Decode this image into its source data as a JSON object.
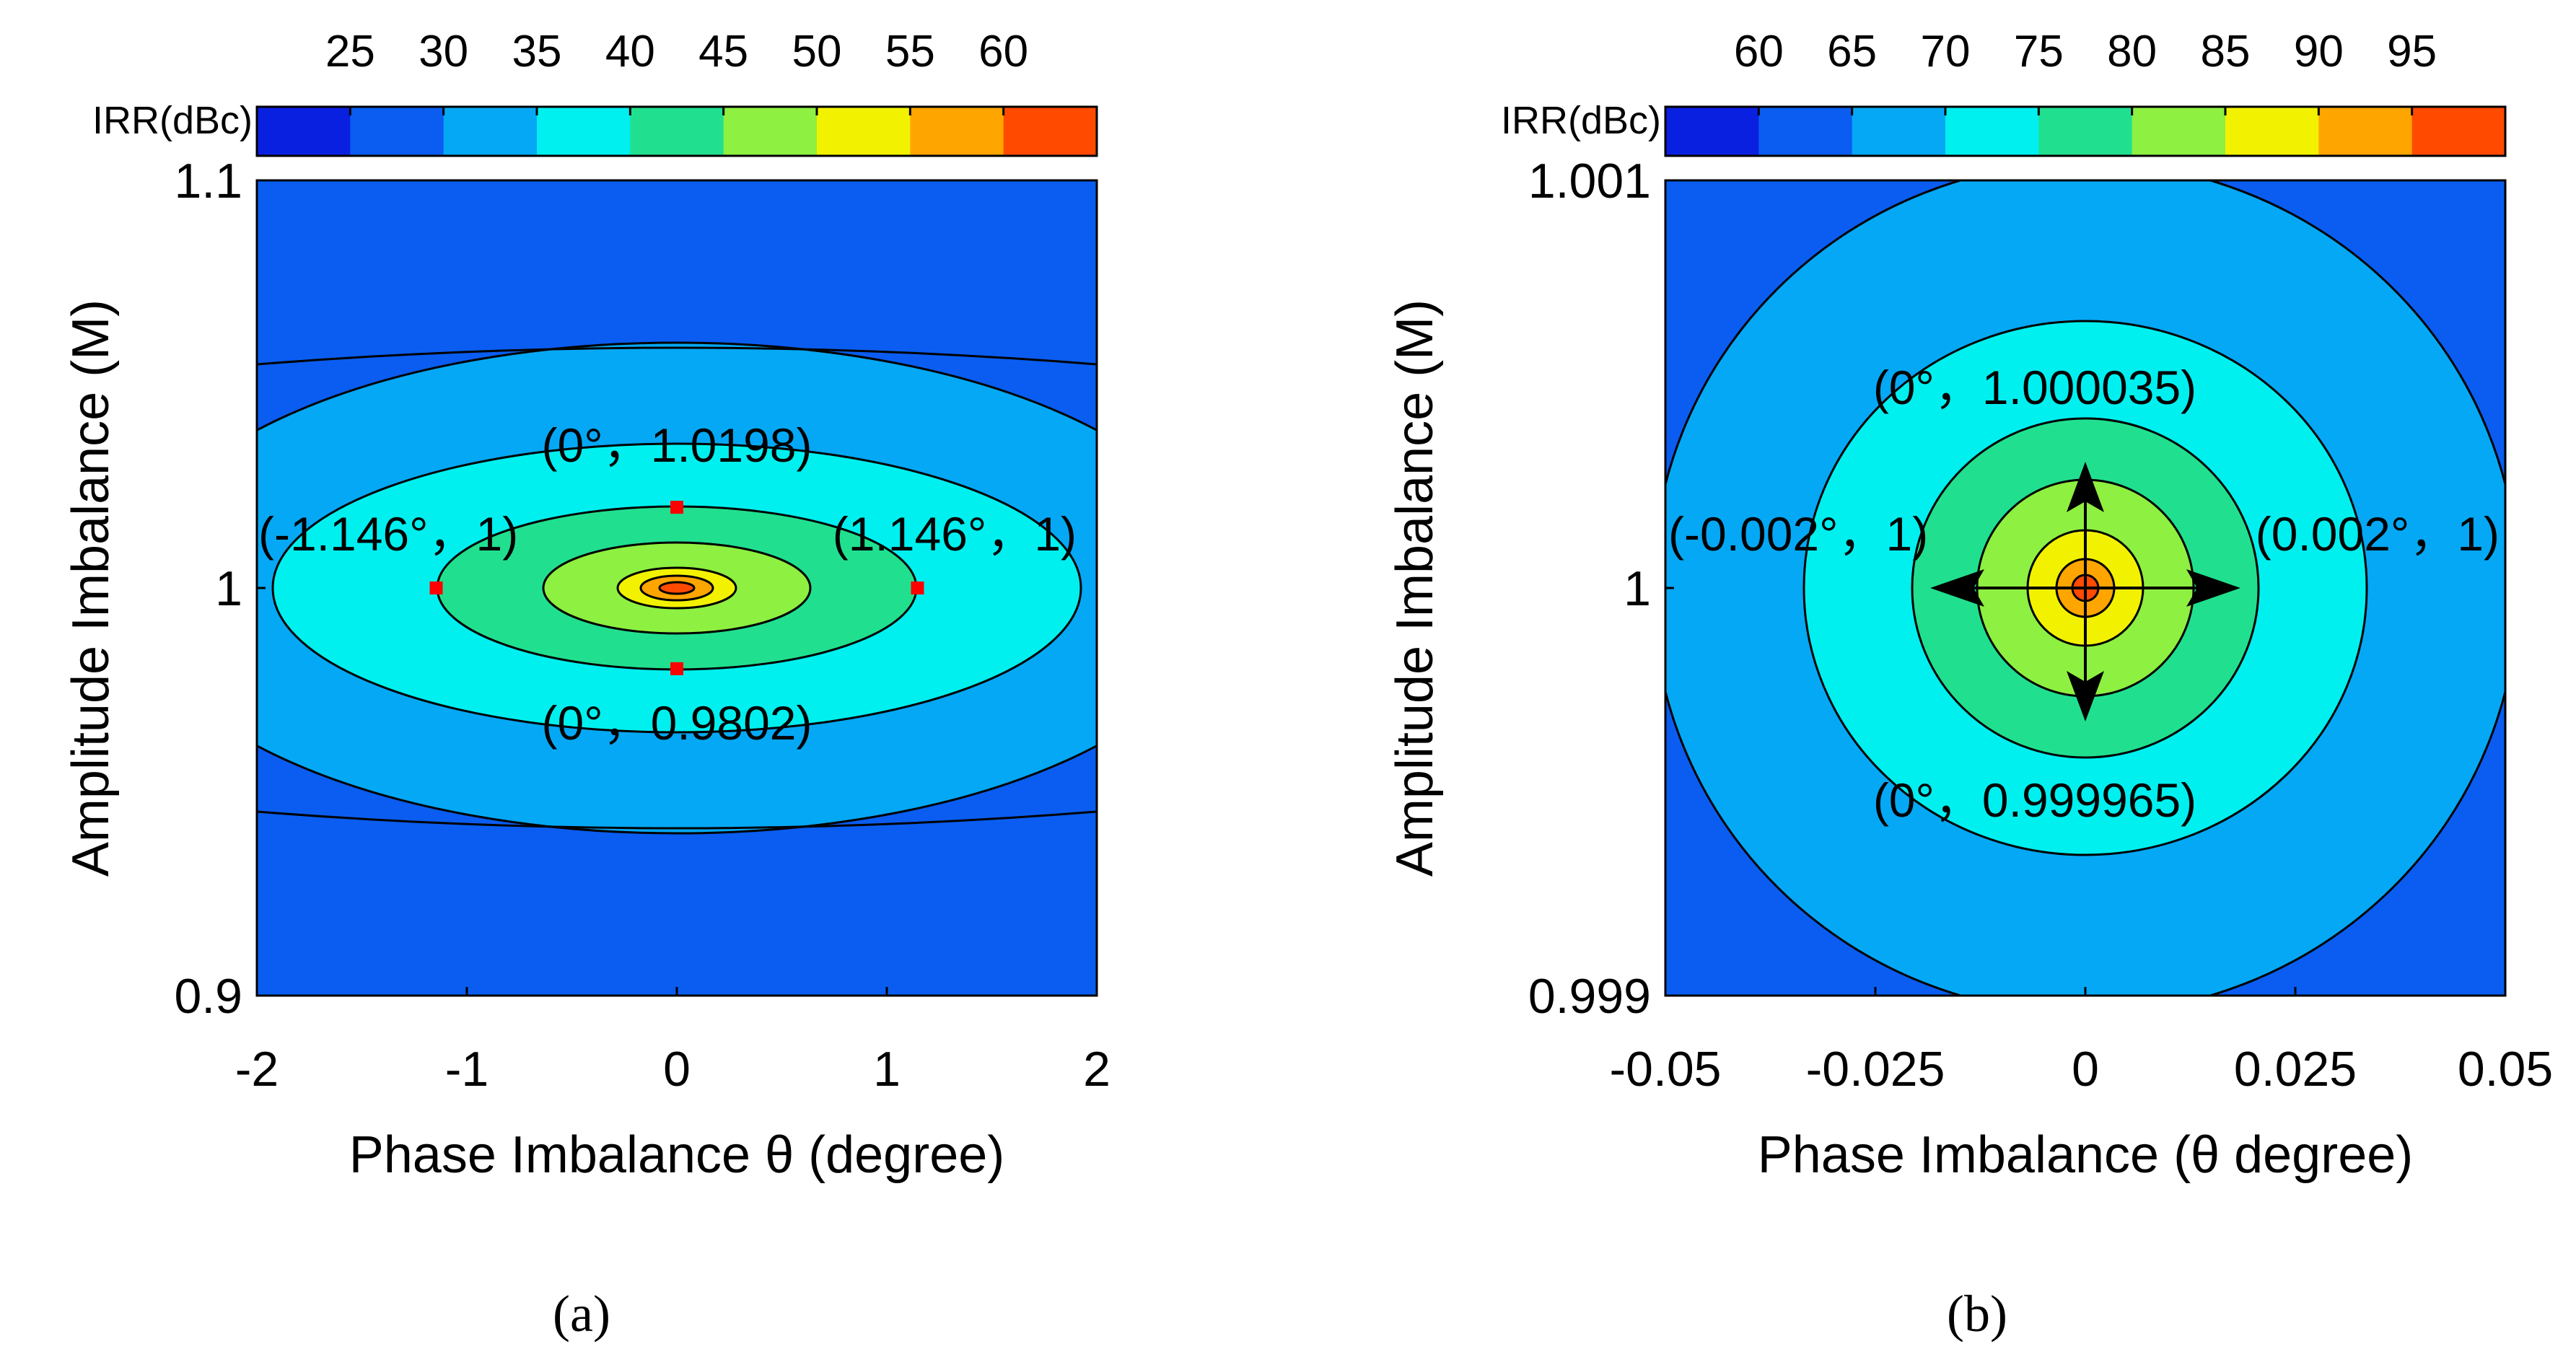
{
  "chart_data": [
    {
      "panel": "a",
      "type": "contourf",
      "xlabel": "Phase Imbalance θ (degree)",
      "ylabel": "Amplitude Imbalance (M)",
      "colorbar_title": "IRR(dBc)",
      "xlim": [
        -2,
        2
      ],
      "ylim": [
        0.9,
        1.1
      ],
      "xticks": [
        "-2",
        "-1",
        "0",
        "1",
        "2"
      ],
      "yticks": [
        "0.9",
        "1",
        "1.1"
      ],
      "colorbar_ticks": [
        "25",
        "30",
        "35",
        "40",
        "45",
        "50",
        "55",
        "60"
      ],
      "contour_levels_dBc": [
        30,
        35,
        40,
        45,
        50,
        55,
        60
      ],
      "annotations": [
        {
          "text": "(0°，1.0198)",
          "x": 0,
          "y": 1.0198
        },
        {
          "text": "(0°，0.9802)",
          "x": 0,
          "y": 0.9802
        },
        {
          "text": "(-1.146°，1)",
          "x": -1.146,
          "y": 1
        },
        {
          "text": "(1.146°，1)",
          "x": 1.146,
          "y": 1
        }
      ],
      "highlighted_points": [
        {
          "x": 0,
          "y": 1.0198
        },
        {
          "x": 0,
          "y": 0.9802
        },
        {
          "x": -1.146,
          "y": 1
        },
        {
          "x": 1.146,
          "y": 1
        }
      ]
    },
    {
      "panel": "b",
      "type": "contourf",
      "xlabel": "Phase Imbalance (θ degree)",
      "ylabel": "Amplitude Imbalance (M)",
      "colorbar_title": "IRR(dBc)",
      "xlim": [
        -0.05,
        0.05
      ],
      "ylim": [
        0.999,
        1.001
      ],
      "xticks": [
        "-0.05",
        "-0.025",
        "0",
        "0.025",
        "0.05"
      ],
      "yticks": [
        "0.999",
        "1",
        "1.001"
      ],
      "colorbar_ticks": [
        "60",
        "65",
        "70",
        "75",
        "80",
        "85",
        "90",
        "95"
      ],
      "contour_levels_dBc": [
        65,
        70,
        75,
        80,
        85,
        90,
        95
      ],
      "annotations": [
        {
          "text": "(0°，1.000035)",
          "x": 0,
          "y": 1.000035
        },
        {
          "text": "(0°，0.999965)",
          "x": 0,
          "y": 0.999965
        },
        {
          "text": "(-0.002°，1)",
          "x": -0.002,
          "y": 1
        },
        {
          "text": "(0.002°，1)",
          "x": 0.002,
          "y": 1
        }
      ]
    }
  ],
  "colormap": [
    "#0a20e0",
    "#0a5df0",
    "#05a8f5",
    "#00f0f0",
    "#20e090",
    "#8ef040",
    "#f2f200",
    "#ffa500",
    "#ff4a00"
  ],
  "panel_labels": {
    "a": "(a)",
    "b": "(b)"
  }
}
